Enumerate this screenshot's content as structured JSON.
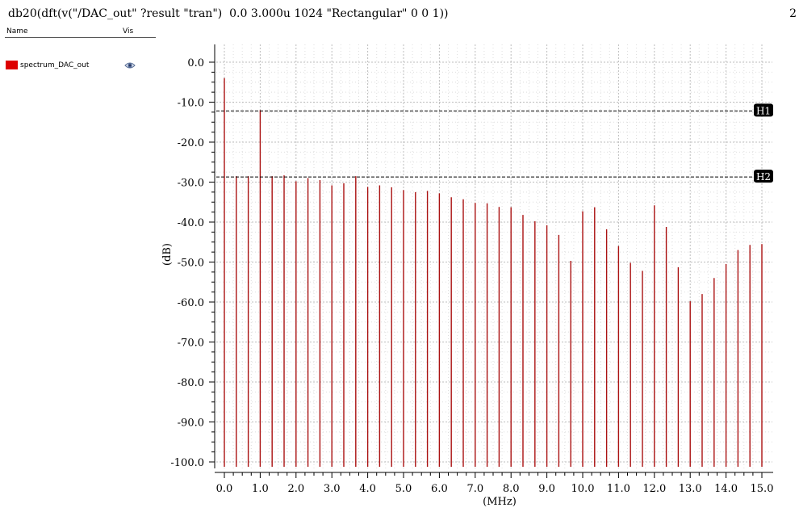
{
  "window": {
    "title": "db20(dft(v(\"/DAC_out\" ?result \"tran\")  0.0 3.000u 1024 \"Rectangular\" 0 0 1))",
    "subwindow_number": "2"
  },
  "legend": {
    "header_name": "Name",
    "header_vis": "Vis",
    "items": [
      {
        "name": "spectrum_DAC_out",
        "color": "#dd0000",
        "visible_icon": "eye-icon"
      }
    ]
  },
  "chart_data": {
    "type": "bar",
    "style": "stem",
    "color": "#aa1111",
    "xlabel": "(MHz)",
    "ylabel": "(dB)",
    "xlim": [
      0.0,
      15.0
    ],
    "ylim": [
      -100.0,
      0.0
    ],
    "x_ticks": [
      "0.0",
      "1.0",
      "2.0",
      "3.0",
      "4.0",
      "5.0",
      "6.0",
      "7.0",
      "8.0",
      "9.0",
      "10.0",
      "11.0",
      "12.0",
      "13.0",
      "14.0",
      "15.0"
    ],
    "y_ticks": [
      "0.0",
      "-10.0",
      "-20.0",
      "-30.0",
      "-40.0",
      "-50.0",
      "-60.0",
      "-70.0",
      "-80.0",
      "-90.0",
      "-100.0"
    ],
    "grid": true,
    "x": [
      0.0,
      0.333,
      0.667,
      1.0,
      1.333,
      1.667,
      2.0,
      2.333,
      2.667,
      3.0,
      3.333,
      3.667,
      4.0,
      4.333,
      4.667,
      5.0,
      5.333,
      5.667,
      6.0,
      6.333,
      6.667,
      7.0,
      7.333,
      7.667,
      8.0,
      8.333,
      8.667,
      9.0,
      9.333,
      9.667,
      10.0,
      10.333,
      10.667,
      11.0,
      11.333,
      11.667,
      12.0,
      12.333,
      12.667,
      13.0,
      13.333,
      13.667,
      14.0,
      14.333,
      14.667,
      15.0
    ],
    "values": [
      -4.0,
      -28.5,
      -28.5,
      -12.0,
      -28.5,
      -28.3,
      -29.8,
      -29.0,
      -29.5,
      -30.8,
      -30.3,
      -28.5,
      -31.2,
      -30.8,
      -31.3,
      -32.0,
      -32.5,
      -32.2,
      -32.8,
      -33.8,
      -34.3,
      -35.2,
      -35.3,
      -36.2,
      -36.3,
      -38.2,
      -39.8,
      -40.8,
      -43.2,
      -49.7,
      -37.3,
      -36.3,
      -41.8,
      -46.0,
      -50.2,
      -52.2,
      -35.8,
      -41.2,
      -51.3,
      -59.8,
      -58.0,
      -54.0,
      -50.5,
      -47.0,
      -45.7,
      -45.5
    ],
    "markers": [
      {
        "label": "H1",
        "y": -12.2
      },
      {
        "label": "H2",
        "y": -28.7
      }
    ]
  }
}
